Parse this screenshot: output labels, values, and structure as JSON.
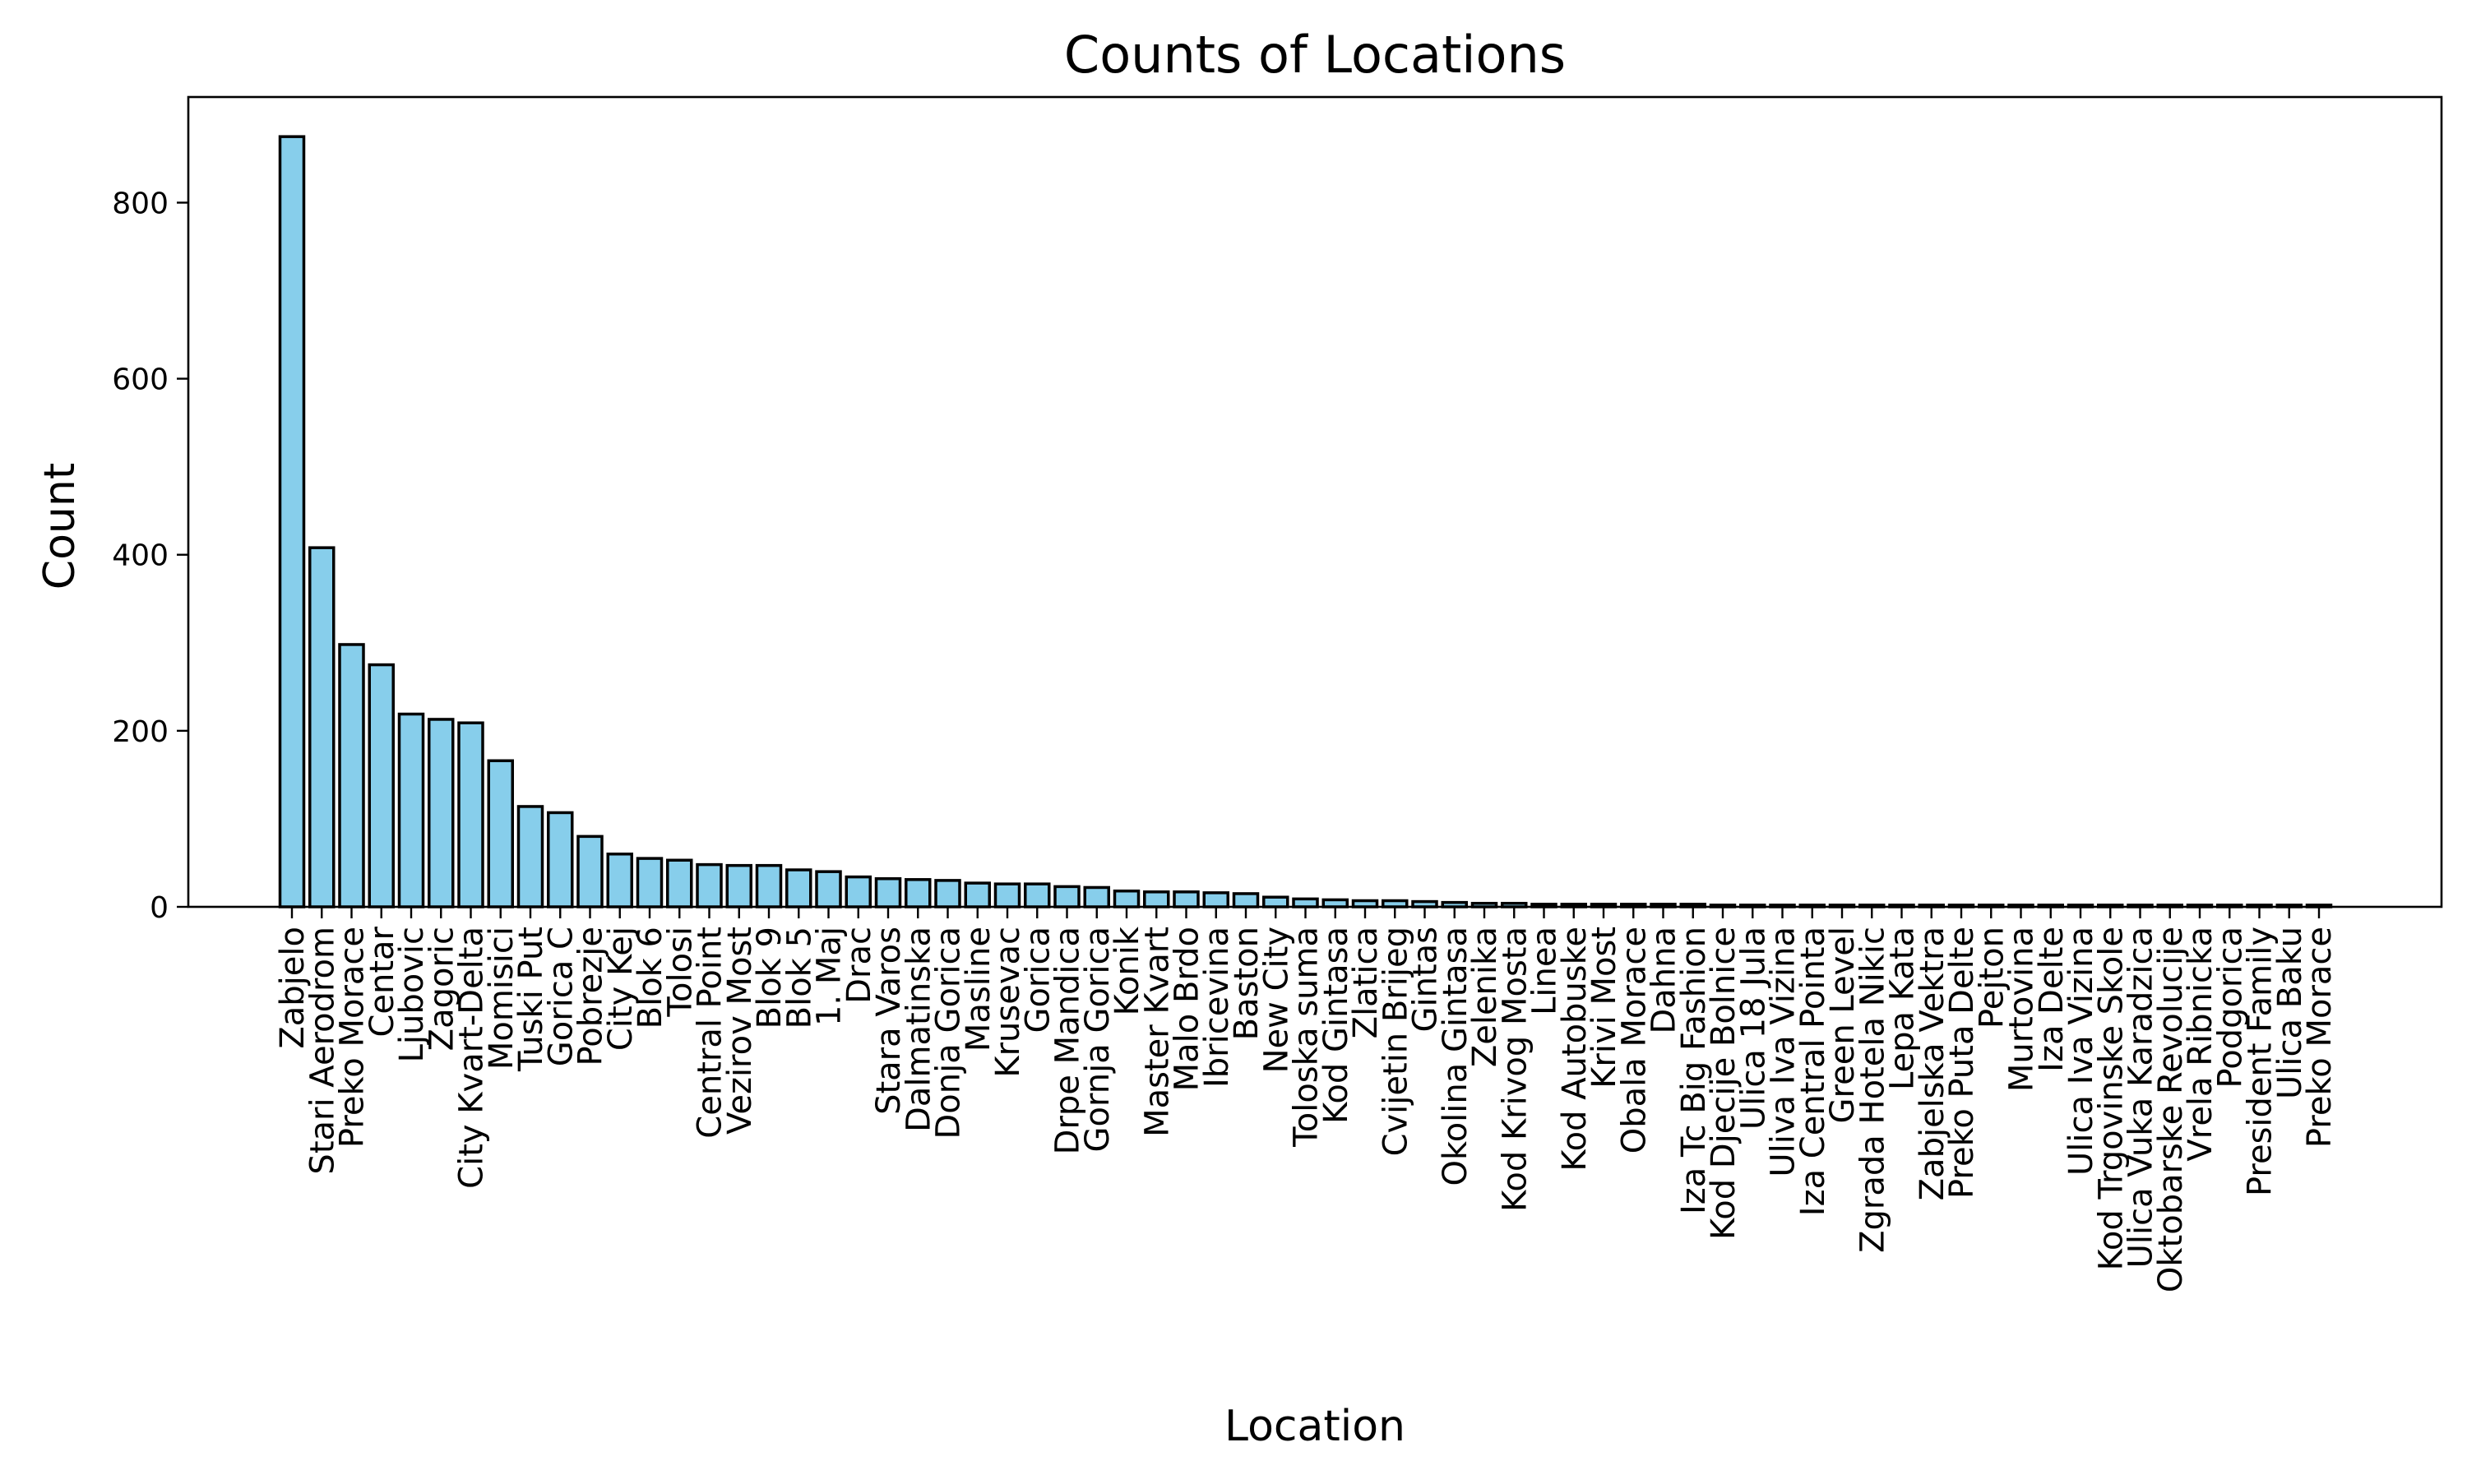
{
  "chart_data": {
    "type": "bar",
    "title": "Counts of Locations",
    "xlabel": "Location",
    "ylabel": "Count",
    "ylim": [
      0,
      920
    ],
    "yticks": [
      0,
      200,
      400,
      600,
      800
    ],
    "grid": false,
    "legend": "none",
    "bar_color": "#87ceeb",
    "edge_color": "#000000",
    "categories": [
      "Zabjelo",
      "Stari Aerodrom",
      "Preko Morace",
      "Centar",
      "Ljubovic",
      "Zagoric",
      "City Kvart-Delta",
      "Momisici",
      "Tuski Put",
      "Gorica C",
      "Pobrezje",
      "City Kej",
      "Blok 6",
      "Tolosi",
      "Central Point",
      "Vezirov Most",
      "Blok 9",
      "Blok 5",
      "1. Maj",
      "Drac",
      "Stara Varos",
      "Dalmatinska",
      "Donja Gorica",
      "Masline",
      "Krusevac",
      "Gorica",
      "Drpe Mandica",
      "Gornja Gorica",
      "Konik",
      "Master Kvart",
      "Malo Brdo",
      "Ibricevina",
      "Baston",
      "New City",
      "Toloska suma",
      "Kod Gintasa",
      "Zlatica",
      "Cvijetin Brijeg",
      "Gintas",
      "Okolina Gintasa",
      "Zelenika",
      "Kod Krivog Mosta",
      "Linea",
      "Kod Autobuske",
      "Krivi Most",
      "Obala Morace",
      "Dahna",
      "Iza Tc Big Fashion",
      "Kod Djecije Bolnice",
      "Ulica 18 Jula",
      "Uliva Iva Vizina",
      "Iza Central Pointa",
      "Green Level",
      "Zgrada Hotela Nikic",
      "Lepa Kata",
      "Zabjelska Vektra",
      "Preko Puta Delte",
      "Pejton",
      "Murtovina",
      "Iza Delte",
      "Ulica Iva Vizina",
      "Kod Trgovinske Skole",
      "Ulica Vuka Karadzica",
      "Oktobarske Revolucije",
      "Vrela Ribnicka",
      "Podgorica",
      "President Family",
      "Ulica Baku",
      "Preko Morace"
    ],
    "values": [
      875,
      408,
      298,
      275,
      219,
      213,
      209,
      166,
      114,
      107,
      80,
      60,
      55,
      53,
      48,
      47,
      47,
      42,
      40,
      34,
      32,
      31,
      30,
      27,
      26,
      26,
      23,
      22,
      18,
      17,
      17,
      16,
      15,
      11,
      9,
      8,
      7,
      7,
      6,
      5,
      4,
      4,
      3,
      3,
      3,
      3,
      3,
      3,
      2,
      2,
      2,
      2,
      2,
      2,
      2,
      2,
      2,
      2,
      2,
      2,
      2,
      2,
      2,
      2,
      2,
      2,
      2,
      2,
      2
    ]
  }
}
